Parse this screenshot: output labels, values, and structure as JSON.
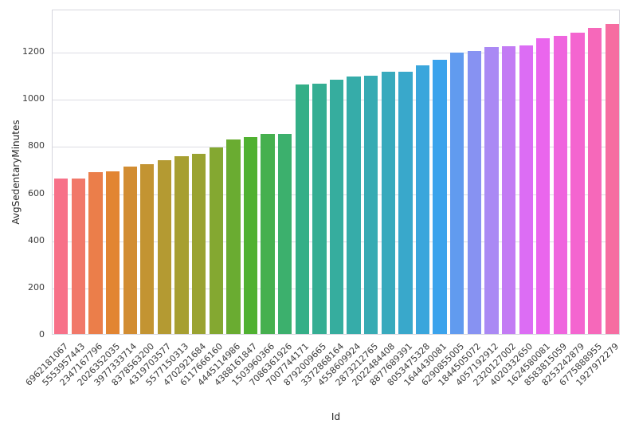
{
  "chart_data": {
    "type": "bar",
    "title": "",
    "xlabel": "Id",
    "ylabel": "AvgSedentaryMinutes",
    "categories": [
      "6962181067",
      "5553957443",
      "2347167796",
      "2026352035",
      "3977333714",
      "8378563200",
      "4319703577",
      "5577150313",
      "4702921684",
      "6117666160",
      "4445114986",
      "4388161847",
      "1503960366",
      "7086361926",
      "7007744171",
      "8792009665",
      "3372868164",
      "4558609924",
      "2873212765",
      "2022484408",
      "8877689391",
      "8053475328",
      "1644430081",
      "6290855005",
      "1844505072",
      "4057192912",
      "2320127002",
      "4020332650",
      "1624580081",
      "8583815059",
      "8253242879",
      "6775888955",
      "1927972279"
    ],
    "values": [
      660,
      661,
      688,
      691,
      709,
      719,
      736,
      753,
      763,
      793,
      827,
      837,
      848,
      849,
      1058,
      1061,
      1078,
      1094,
      1097,
      1112,
      1113,
      1139,
      1163,
      1193,
      1200,
      1217,
      1220,
      1224,
      1254,
      1264,
      1278,
      1298,
      1315
    ],
    "yticks": [
      0,
      200,
      400,
      600,
      800,
      1000,
      1200
    ],
    "ylim": [
      0,
      1380
    ],
    "grid": true,
    "legend": null,
    "palette": [
      "#f77189",
      "#e68332",
      "#bb9832",
      "#97a431",
      "#50b131",
      "#34af84",
      "#36ada4",
      "#38aabf",
      "#3ba3ec",
      "#a48cf4",
      "#e866f4",
      "#f565cc"
    ]
  },
  "colors": {
    "background": "#ffffff",
    "grid": "#dcdce3",
    "plot_border": "#d6d6de",
    "tick_text": "#3b3b3b",
    "axis_label_text": "#262626"
  }
}
